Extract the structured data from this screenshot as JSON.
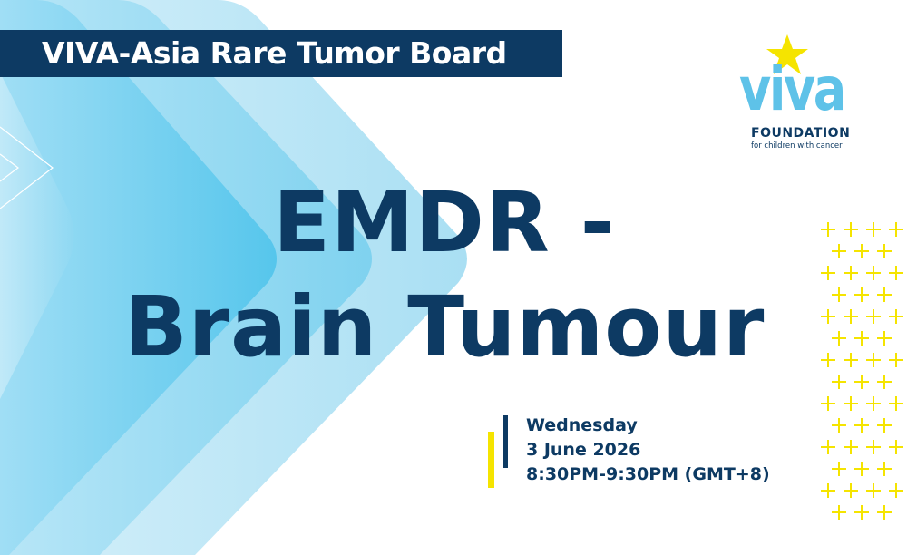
{
  "banner": {
    "title": "VIVA-Asia Rare Tumor Board"
  },
  "headline": {
    "line1": "EMDR -",
    "line2": "Brain Tumour"
  },
  "event": {
    "day": "Wednesday",
    "date": "3 June 2026",
    "time": "8:30PM-9:30PM (GMT+8)"
  },
  "logo": {
    "word": "viva",
    "foundation": "FOUNDATION",
    "tagline": "for children with cancer"
  },
  "colors": {
    "navy": "#0d3a63",
    "sky": "#5ec2e8",
    "yellow": "#f5e400"
  }
}
